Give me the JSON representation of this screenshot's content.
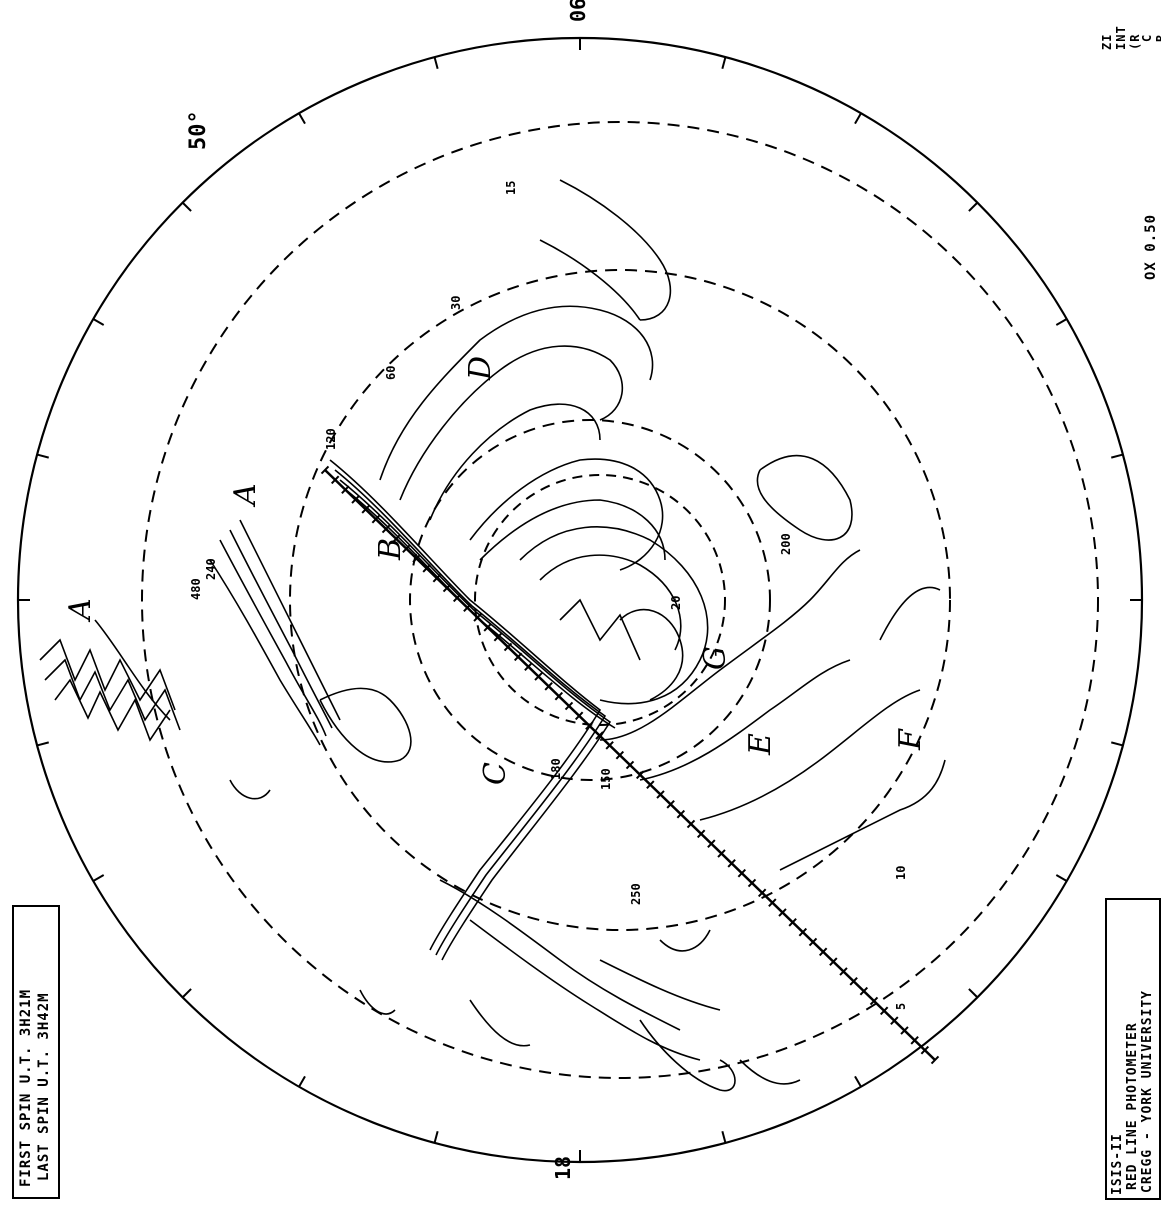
{
  "header_box": {
    "first_spin": "FIRST SPIN U.T. 3H21M",
    "last_spin": "LAST SPIN U.T. 3H42M"
  },
  "footer_box": {
    "line1": "ISIS-II",
    "line2": "RED LINE PHOTOMETER",
    "line3": "CREGG - YORK UNIVERSITY"
  },
  "corner_text": {
    "top_right_a": "C\nR",
    "top_right_b": "ZI\nINT\n(R",
    "right_edge": "OX 0.50"
  },
  "grid_labels": {
    "lat_50": "50°",
    "lon_top": "06",
    "lon_bottom": "18"
  },
  "region_letters": [
    "A",
    "A",
    "B",
    "C",
    "D",
    "E",
    "F",
    "G"
  ],
  "contour_values": [
    "15",
    "30",
    "60",
    "120",
    "240",
    "480",
    "180",
    "150",
    "200",
    "250",
    "20",
    "10",
    "5"
  ]
}
